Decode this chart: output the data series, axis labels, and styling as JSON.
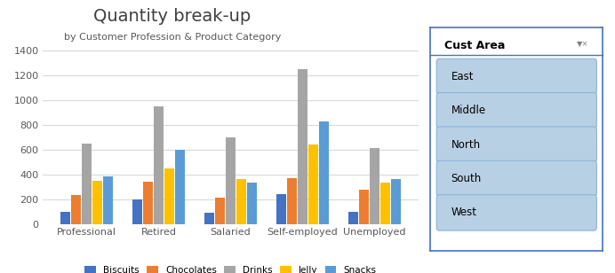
{
  "title": "Quantity break-up",
  "subtitle": "by Customer Profession & Product Category",
  "categories": [
    "Professional",
    "Retired",
    "Salaried",
    "Self-employed",
    "Unemployed"
  ],
  "series": {
    "Biscuits": [
      100,
      200,
      90,
      240,
      95
    ],
    "Chocolates": [
      230,
      340,
      210,
      370,
      275
    ],
    "Drinks": [
      650,
      950,
      700,
      1250,
      615
    ],
    "Jelly": [
      350,
      450,
      360,
      640,
      330
    ],
    "Snacks": [
      385,
      595,
      335,
      825,
      360
    ]
  },
  "bar_colors": [
    "#4472c4",
    "#ed7d31",
    "#a5a5a5",
    "#ffc000",
    "#5b9bd5"
  ],
  "series_names": [
    "Biscuits",
    "Chocolates",
    "Drinks",
    "Jelly",
    "Snacks"
  ],
  "ylim": [
    0,
    1500
  ],
  "yticks": [
    0,
    200,
    400,
    600,
    800,
    1000,
    1200,
    1400
  ],
  "bg_color": "#ffffff",
  "plot_bg": "#ffffff",
  "grid_color": "#d9d9d9",
  "slicer_title": "Cust Area",
  "slicer_items": [
    "East",
    "Middle",
    "North",
    "South",
    "West"
  ],
  "slicer_border": "#4472c4",
  "slicer_item_bg": "#b8d0e4",
  "slicer_item_border": "#8db4d9"
}
